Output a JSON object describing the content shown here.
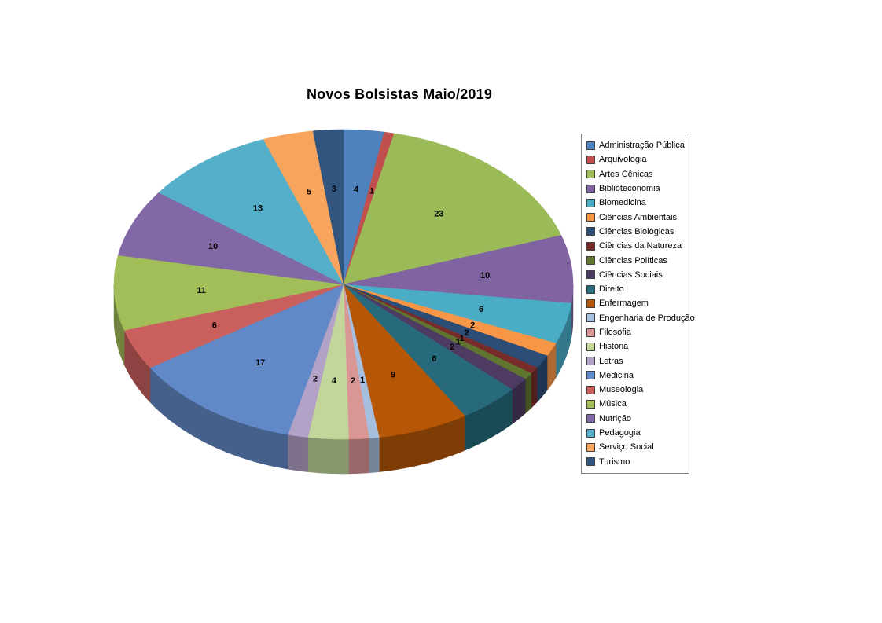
{
  "chart_data": {
    "type": "pie",
    "style": "3d",
    "title": "Novos Bolsistas Maio/2019",
    "legend_position": "right",
    "start_angle_deg": 0,
    "direction": "clockwise",
    "data_labels": "values",
    "categories": [
      "Administração Pública",
      "Arquivologia",
      "Artes Cênicas",
      "Biblioteconomia",
      "Biomedicina",
      "Ciências Ambientais",
      "Ciências Biológicas",
      "Ciências da Natureza",
      "Ciências Políticas",
      "Ciências Sociais",
      "Direito",
      "Enfermagem",
      "Engenharia de Produção",
      "Filosofia",
      "História",
      "Letras",
      "Medicina",
      "Museologia",
      "Música",
      "Nutrição",
      "Pedagogia",
      "Serviço Social",
      "Turismo"
    ],
    "values": [
      4,
      1,
      23,
      10,
      6,
      2,
      2,
      1,
      1,
      2,
      6,
      9,
      1,
      2,
      4,
      2,
      17,
      6,
      11,
      10,
      13,
      5,
      3
    ],
    "colors": [
      "#4F81BD",
      "#C0504D",
      "#9BBB59",
      "#8064A2",
      "#4BACC6",
      "#F79646",
      "#2C4D75",
      "#772C2A",
      "#5F7530",
      "#4D3B62",
      "#276A7C",
      "#B65708",
      "#A7BFDE",
      "#D99694",
      "#C2D69B",
      "#B3A2C7",
      "#6189C7",
      "#C9605D",
      "#A2BE58",
      "#8268A6",
      "#55AFC9",
      "#F8A45C",
      "#31557F"
    ]
  }
}
